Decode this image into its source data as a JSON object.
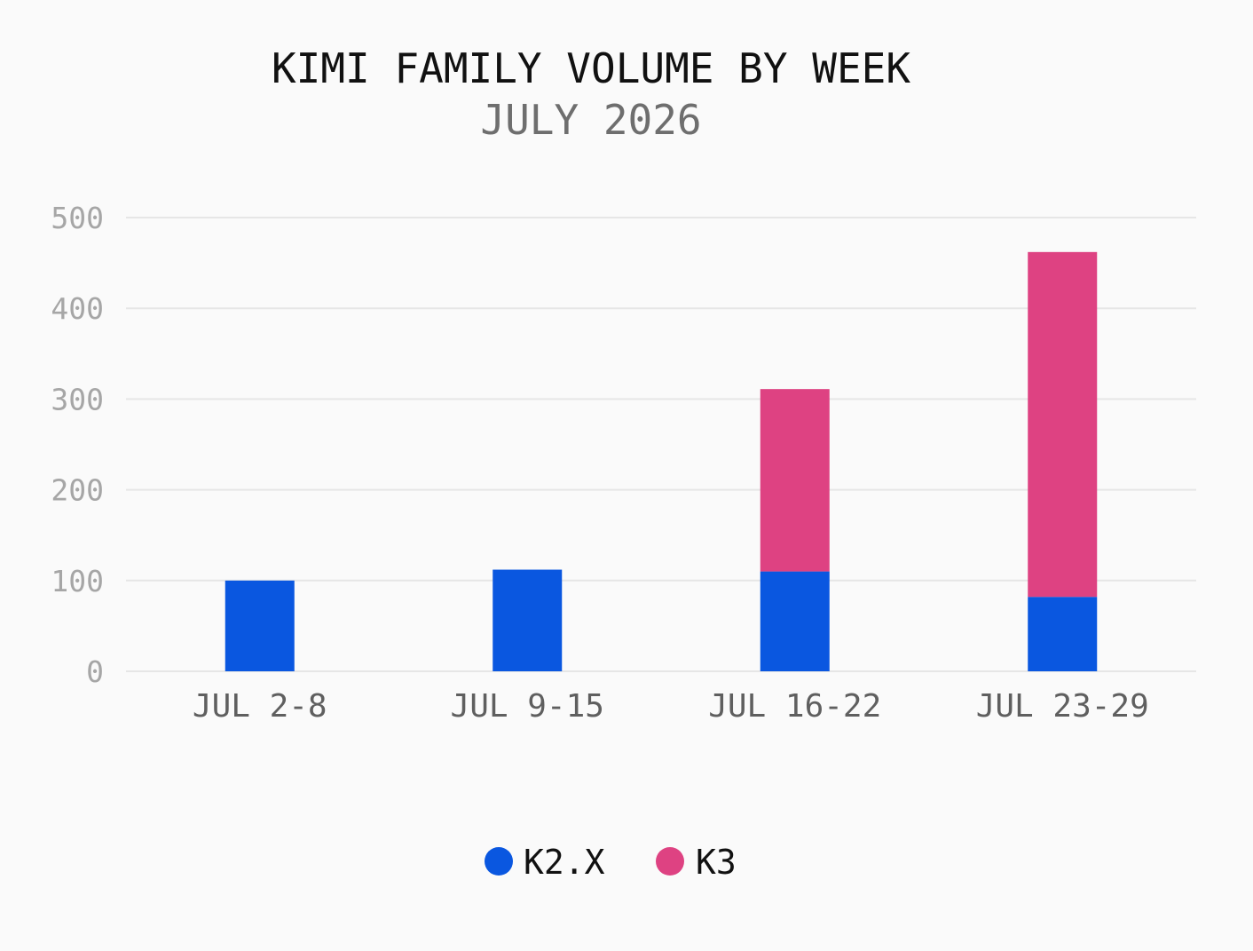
{
  "chart_data": {
    "type": "bar",
    "stacked": true,
    "title": "KIMI FAMILY VOLUME BY WEEK",
    "subtitle": "JULY 2026",
    "xlabel": "",
    "ylabel": "",
    "categories": [
      "JUL 2-8",
      "JUL 9-15",
      "JUL 16-22",
      "JUL 23-29"
    ],
    "series": [
      {
        "name": "K2.X",
        "color": "#0a57e0",
        "values": [
          100,
          112,
          110,
          82
        ]
      },
      {
        "name": "K3",
        "color": "#de4282",
        "values": [
          0,
          0,
          201,
          380
        ]
      }
    ],
    "ylim": [
      0,
      500
    ],
    "yticks": [
      "0",
      "100",
      "200",
      "300",
      "400",
      "500"
    ],
    "grid": true,
    "legend": "bottom-center"
  }
}
